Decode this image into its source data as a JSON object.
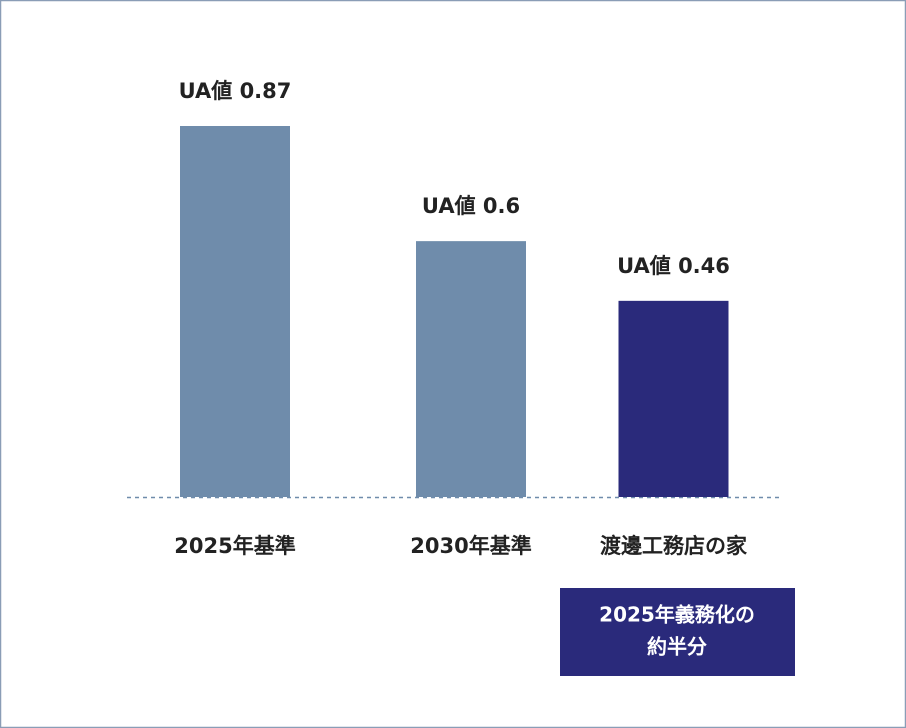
{
  "chart_data": {
    "type": "bar",
    "categories": [
      "2025年基準",
      "2030年基準",
      "渡邊工務店の家"
    ],
    "values": [
      0.87,
      0.6,
      0.46
    ],
    "value_labels": [
      "UA値 0.87",
      "UA値 0.6",
      "UA値 0.46"
    ],
    "colors": [
      "#6f8cab",
      "#6f8cab",
      "#2a2a7b"
    ],
    "annotation": [
      "2025年義務化の",
      "約半分"
    ]
  }
}
